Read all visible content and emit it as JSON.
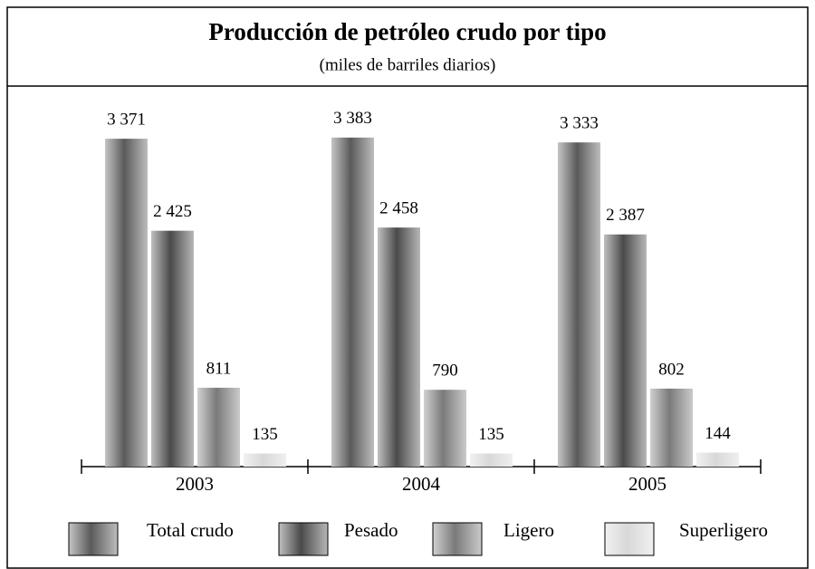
{
  "chart_data": {
    "type": "bar",
    "title": "Producción de petróleo crudo por tipo",
    "subtitle": "(miles de barriles diarios)",
    "categories": [
      "2003",
      "2004",
      "2005"
    ],
    "series": [
      {
        "name": "Total crudo",
        "color": "#5a5a5a",
        "values": [
          3371,
          3383,
          3333
        ],
        "value_labels": [
          "3 371",
          "3 383",
          "3 333"
        ]
      },
      {
        "name": "Pesado",
        "color": "#4a4a4a",
        "values": [
          2425,
          2458,
          2387
        ],
        "value_labels": [
          "2 425",
          "2 458",
          "2 387"
        ]
      },
      {
        "name": "Ligero",
        "color": "#7a7a7a",
        "values": [
          811,
          790,
          802
        ],
        "value_labels": [
          "811",
          "790",
          "802"
        ]
      },
      {
        "name": "Superligero",
        "color": "#d8d8d8",
        "values": [
          135,
          135,
          144
        ],
        "value_labels": [
          "135",
          "135",
          "144"
        ]
      }
    ],
    "ylim": [
      0,
      3400
    ]
  }
}
